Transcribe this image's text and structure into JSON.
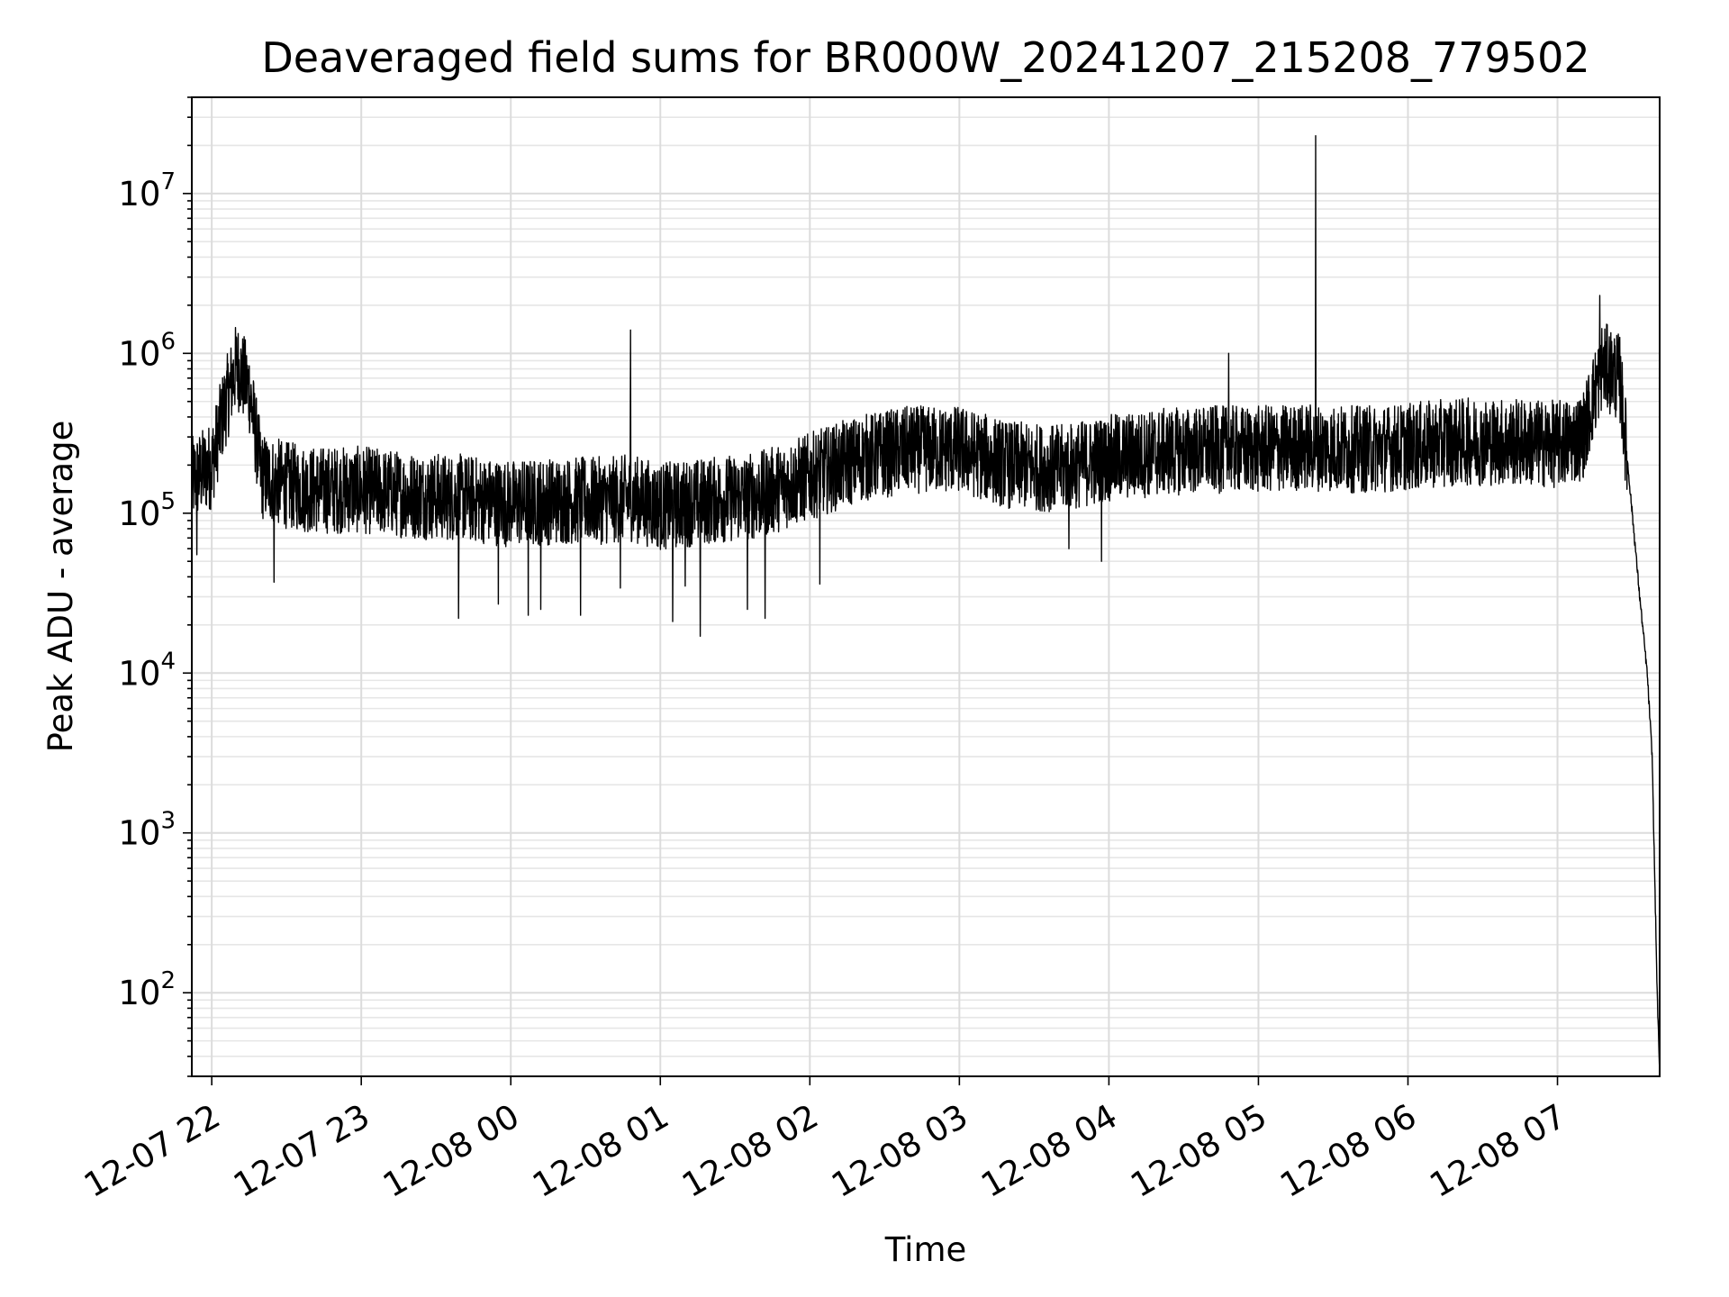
{
  "chart_data": {
    "type": "line",
    "title": "Deaveraged field sums for BR000W_20241207_215208_779502",
    "xlabel": "Time",
    "ylabel": "Peak ADU - average",
    "yscale": "log",
    "grid": true,
    "legend": "none",
    "line_color": "#000000",
    "x_tick_labels": [
      "12-07 22",
      "12-07 23",
      "12-08 00",
      "12-08 01",
      "12-08 02",
      "12-08 03",
      "12-08 04",
      "12-08 05",
      "12-08 06",
      "12-08 07"
    ],
    "x_range": [
      "2024-12-07 21:52",
      "2024-12-08 07:41"
    ],
    "y_ticks": [
      {
        "base": "10",
        "exp": "2"
      },
      {
        "base": "10",
        "exp": "3"
      },
      {
        "base": "10",
        "exp": "4"
      },
      {
        "base": "10",
        "exp": "5"
      },
      {
        "base": "10",
        "exp": "6"
      },
      {
        "base": "10",
        "exp": "7"
      }
    ],
    "ylim": [
      30,
      40000000
    ],
    "x": [
      "21:52",
      "22:00",
      "22:05",
      "22:10",
      "22:15",
      "22:20",
      "22:30",
      "22:40",
      "23:00",
      "23:20",
      "23:40",
      "00:00",
      "00:20",
      "00:40",
      "00:48",
      "01:00",
      "01:20",
      "01:40",
      "02:00",
      "02:20",
      "02:40",
      "03:00",
      "03:20",
      "03:40",
      "04:00",
      "04:20",
      "04:40",
      "05:00",
      "05:20",
      "05:40",
      "06:00",
      "06:20",
      "06:40",
      "07:00",
      "07:10",
      "07:18",
      "07:25",
      "07:30",
      "07:33",
      "07:36",
      "07:38",
      "07:40",
      "07:41"
    ],
    "values": [
      160000,
      200000,
      450000,
      850000,
      600000,
      170000,
      150000,
      140000,
      140000,
      130000,
      125000,
      115000,
      120000,
      120000,
      125000,
      110000,
      120000,
      130000,
      170000,
      220000,
      250000,
      250000,
      200000,
      190000,
      220000,
      240000,
      250000,
      250000,
      260000,
      250000,
      260000,
      280000,
      280000,
      270000,
      300000,
      850000,
      700000,
      100000,
      30000,
      10000,
      3000,
      100,
      30
    ],
    "spikes": [
      {
        "x": "00:48",
        "y": 1400000
      },
      {
        "x": "04:48",
        "y": 1000000
      },
      {
        "x": "05:23",
        "y": 23000000
      },
      {
        "x": "07:17",
        "y": 2300000
      }
    ],
    "dips": [
      {
        "x": "21:54",
        "y": 55000
      },
      {
        "x": "22:25",
        "y": 37000
      },
      {
        "x": "23:39",
        "y": 22000
      },
      {
        "x": "23:55",
        "y": 27000
      },
      {
        "x": "00:07",
        "y": 23000
      },
      {
        "x": "00:12",
        "y": 25000
      },
      {
        "x": "00:28",
        "y": 23000
      },
      {
        "x": "00:44",
        "y": 34000
      },
      {
        "x": "01:05",
        "y": 21000
      },
      {
        "x": "01:10",
        "y": 35000
      },
      {
        "x": "01:16",
        "y": 17000
      },
      {
        "x": "01:35",
        "y": 25000
      },
      {
        "x": "01:42",
        "y": 22000
      },
      {
        "x": "02:04",
        "y": 36000
      },
      {
        "x": "03:44",
        "y": 60000
      },
      {
        "x": "03:57",
        "y": 50000
      }
    ]
  }
}
